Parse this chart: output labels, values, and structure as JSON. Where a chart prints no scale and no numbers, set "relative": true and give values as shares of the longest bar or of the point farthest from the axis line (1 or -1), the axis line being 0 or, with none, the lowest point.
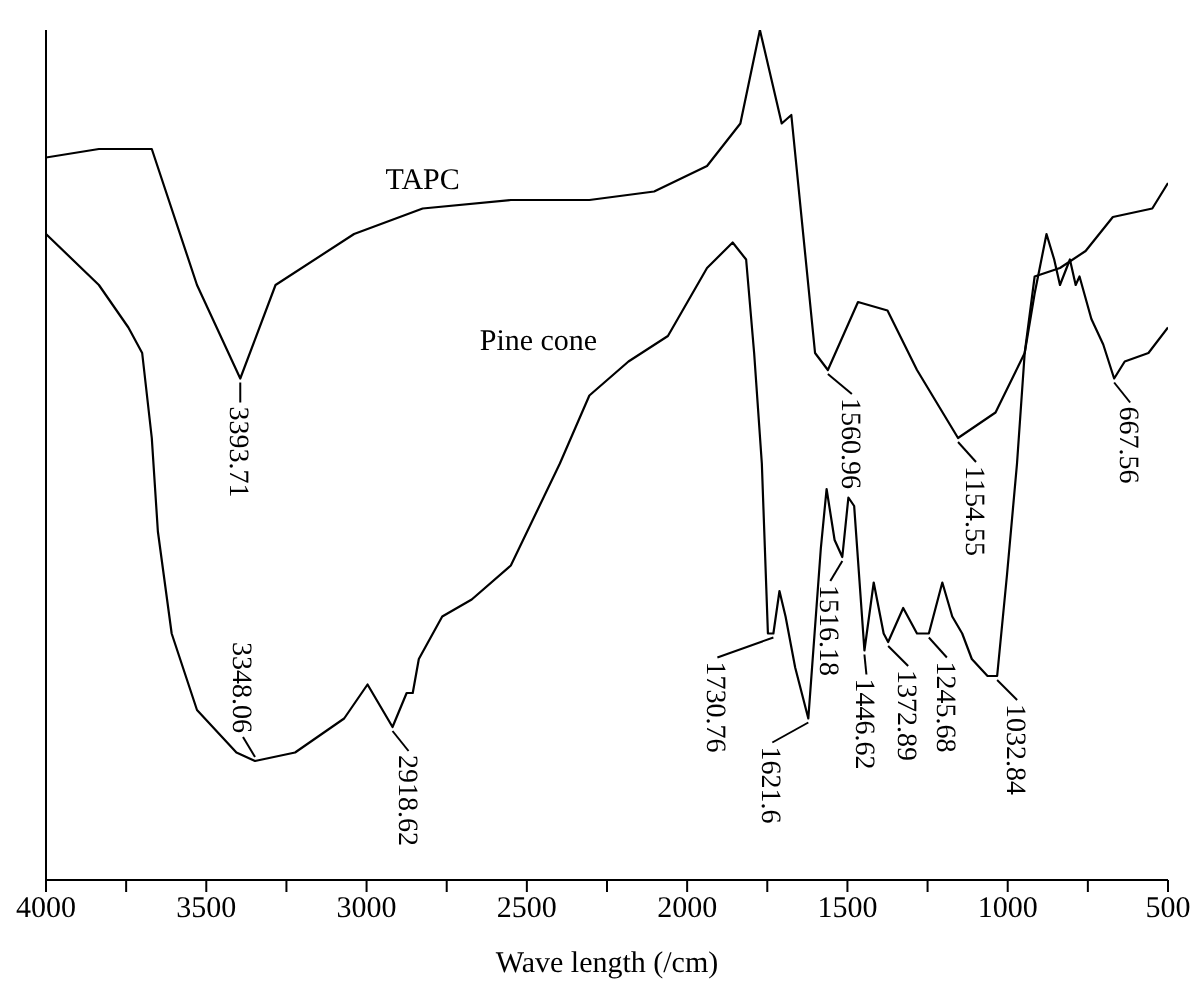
{
  "chart_data": {
    "type": "line",
    "relative": true,
    "xlabel": "Wave length (/cm)",
    "xlim": [
      4000,
      500
    ],
    "xticks": [
      4000,
      {
        "value": 3750,
        "label": null
      },
      3500,
      {
        "value": 3250,
        "label": null
      },
      3000,
      {
        "value": 2750,
        "label": null
      },
      2500,
      {
        "value": 2250,
        "label": null
      },
      2000,
      {
        "value": 1750,
        "label": null
      },
      1500,
      {
        "value": 1250,
        "label": null
      },
      1000,
      {
        "value": 750,
        "label": null
      },
      500
    ],
    "grid": false,
    "legend": false,
    "marker": "none",
    "line_style": "solid",
    "series": [
      {
        "name": "TAPC",
        "color": "#000000",
        "x": [
          4000,
          3835,
          3725,
          3670,
          3529,
          3394,
          3284,
          3039,
          2825,
          2550,
          2305,
          2103,
          1938,
          1834,
          1773,
          1705,
          1675,
          1601,
          1561,
          1467,
          1375,
          1283,
          1155,
          1038,
          947,
          916,
          837,
          757,
          672,
          549,
          500
        ],
        "values": [
          0.85,
          0.86,
          0.86,
          0.86,
          0.7,
          0.59,
          0.7,
          0.76,
          0.79,
          0.8,
          0.8,
          0.81,
          0.84,
          0.89,
          1.0,
          0.89,
          0.9,
          0.62,
          0.6,
          0.68,
          0.67,
          0.6,
          0.52,
          0.55,
          0.62,
          0.71,
          0.72,
          0.74,
          0.78,
          0.79,
          0.82
        ]
      },
      {
        "name": "Pine cone",
        "color": "#000000",
        "x": [
          4000,
          3835,
          3743,
          3700,
          3670,
          3651,
          3608,
          3529,
          3406,
          3348,
          3223,
          3070,
          2997,
          2919,
          2875,
          2856,
          2837,
          2764,
          2672,
          2550,
          2397,
          2305,
          2183,
          2060,
          1938,
          1858,
          1816,
          1791,
          1767,
          1748,
          1731,
          1712,
          1693,
          1663,
          1622,
          1583,
          1565,
          1540,
          1516,
          1497,
          1479,
          1447,
          1418,
          1387,
          1373,
          1326,
          1283,
          1246,
          1204,
          1173,
          1142,
          1112,
          1063,
          1033,
          1002,
          971,
          947,
          916,
          879,
          855,
          837,
          806,
          788,
          776,
          739,
          702,
          668,
          635,
          561,
          500
        ],
        "values": [
          0.76,
          0.7,
          0.65,
          0.62,
          0.52,
          0.41,
          0.29,
          0.2,
          0.15,
          0.14,
          0.15,
          0.19,
          0.23,
          0.18,
          0.22,
          0.22,
          0.26,
          0.31,
          0.33,
          0.37,
          0.49,
          0.57,
          0.61,
          0.64,
          0.72,
          0.75,
          0.73,
          0.62,
          0.49,
          0.29,
          0.29,
          0.34,
          0.31,
          0.25,
          0.19,
          0.39,
          0.46,
          0.4,
          0.38,
          0.45,
          0.44,
          0.27,
          0.35,
          0.29,
          0.28,
          0.32,
          0.29,
          0.29,
          0.35,
          0.31,
          0.29,
          0.26,
          0.24,
          0.24,
          0.36,
          0.49,
          0.62,
          0.69,
          0.76,
          0.73,
          0.7,
          0.73,
          0.7,
          0.71,
          0.66,
          0.63,
          0.59,
          0.61,
          0.62,
          0.65
        ]
      }
    ],
    "annotations": [
      {
        "text": "3393.71",
        "x": 3394,
        "y": 0.59
      },
      {
        "text": "1560.96",
        "x": 1561,
        "y": 0.6
      },
      {
        "text": "1154.55",
        "x": 1155,
        "y": 0.52
      },
      {
        "text": "667.56",
        "x": 668,
        "y": 0.59
      },
      {
        "text": "3348.06",
        "x": 3348,
        "y": 0.14
      },
      {
        "text": "2918.62",
        "x": 2919,
        "y": 0.18
      },
      {
        "text": "1730.76",
        "x": 1731,
        "y": 0.29
      },
      {
        "text": "1621.6",
        "x": 1622,
        "y": 0.19
      },
      {
        "text": "1516.18",
        "x": 1516,
        "y": 0.38
      },
      {
        "text": "1446.62",
        "x": 1447,
        "y": 0.27
      },
      {
        "text": "1372.89",
        "x": 1373,
        "y": 0.28
      },
      {
        "text": "1245.68",
        "x": 1246,
        "y": 0.29
      },
      {
        "text": "1032.84",
        "x": 1033,
        "y": 0.24
      }
    ]
  }
}
